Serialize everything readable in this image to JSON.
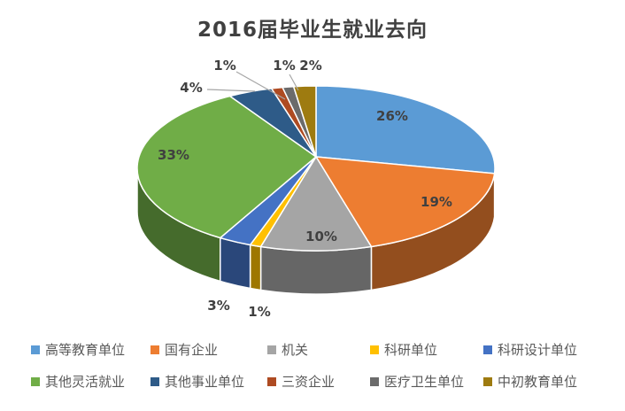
{
  "chart_data": {
    "type": "pie",
    "title": "2016届毕业生就业去向",
    "effect": "3d",
    "direction": "clockwise",
    "start_angle_deg": 0,
    "legend_position": "bottom",
    "categories": [
      "高等教育单位",
      "国有企业",
      "机关",
      "科研单位",
      "科研设计单位",
      "其他灵活就业",
      "其他事业单位",
      "三资企业",
      "医疗卫生单位",
      "中初教育单位"
    ],
    "values": [
      26,
      19,
      10,
      1,
      3,
      33,
      4,
      1,
      1,
      2
    ],
    "labels": [
      "26%",
      "19%",
      "10%",
      "1%",
      "3%",
      "33%",
      "4%",
      "1%",
      "1%",
      "2%"
    ],
    "colors": [
      "#5B9BD5",
      "#ED7D31",
      "#A5A5A5",
      "#FFC000",
      "#4472C4",
      "#70AD47",
      "#2E5B88",
      "#AE4B22",
      "#6B6B6B",
      "#9E7B10"
    ],
    "label_color": "#404040",
    "title_color": "#404040",
    "legend_text_color": "#595959",
    "leader_line_color": "#A6A6A6",
    "background": "#FFFFFF"
  }
}
